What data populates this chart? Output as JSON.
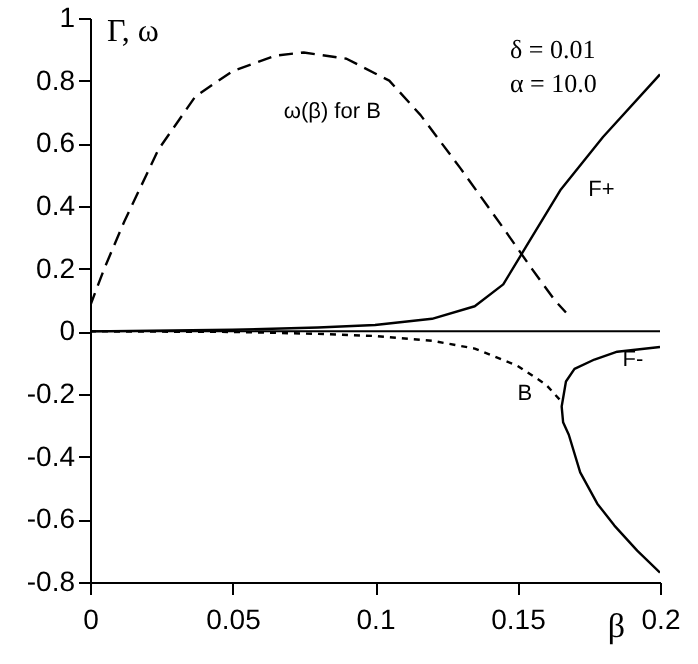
{
  "chart_data": {
    "type": "line",
    "xlabel": "β",
    "ylabel": "Γ, ω",
    "xlim": [
      0,
      0.2
    ],
    "xticks": [
      0,
      0.05,
      0.1,
      0.15,
      0.2
    ],
    "ylim": [
      -0.8,
      1
    ],
    "yticks": [
      -0.8,
      -0.6,
      -0.4,
      -0.2,
      0,
      0.2,
      0.4,
      0.6,
      0.8,
      1
    ],
    "grid": false,
    "ref_lines": [
      {
        "axis": "y",
        "value": 0
      }
    ],
    "annotations": [
      "δ = 0.01",
      "α = 10.0"
    ],
    "series": [
      {
        "name": "ω(β) for B",
        "color": "#000000",
        "line_style": "dashed",
        "x": [
          0,
          0.005,
          0.012,
          0.024,
          0.037,
          0.05,
          0.065,
          0.075,
          0.09,
          0.105,
          0.116,
          0.13,
          0.145,
          0.155,
          0.163,
          0.167
        ],
        "values": [
          0.08,
          0.2,
          0.35,
          0.58,
          0.75,
          0.83,
          0.88,
          0.89,
          0.87,
          0.8,
          0.69,
          0.52,
          0.33,
          0.2,
          0.1,
          0.06
        ]
      },
      {
        "name": "F+",
        "color": "#000000",
        "line_style": "solid",
        "x": [
          0,
          0.05,
          0.08,
          0.1,
          0.12,
          0.135,
          0.145,
          0.153,
          0.165,
          0.18,
          0.2
        ],
        "values": [
          0,
          0.005,
          0.012,
          0.02,
          0.04,
          0.08,
          0.15,
          0.27,
          0.45,
          0.62,
          0.82
        ]
      },
      {
        "name": "B",
        "color": "#000000",
        "line_style": "dotted",
        "x": [
          0,
          0.05,
          0.08,
          0.1,
          0.12,
          0.135,
          0.15,
          0.16,
          0.166
        ],
        "values": [
          0,
          -0.002,
          -0.008,
          -0.015,
          -0.03,
          -0.055,
          -0.11,
          -0.17,
          -0.23
        ]
      },
      {
        "name": "F-",
        "color": "#000000",
        "line_style": "solid",
        "x": [
          0.2,
          0.185,
          0.177,
          0.17,
          0.167,
          0.1655,
          0.166,
          0.168,
          0.172,
          0.178,
          0.184,
          0.192,
          0.2
        ],
        "values": [
          -0.05,
          -0.065,
          -0.09,
          -0.12,
          -0.16,
          -0.24,
          -0.29,
          -0.33,
          -0.45,
          -0.55,
          -0.62,
          -0.7,
          -0.77
        ]
      }
    ]
  }
}
